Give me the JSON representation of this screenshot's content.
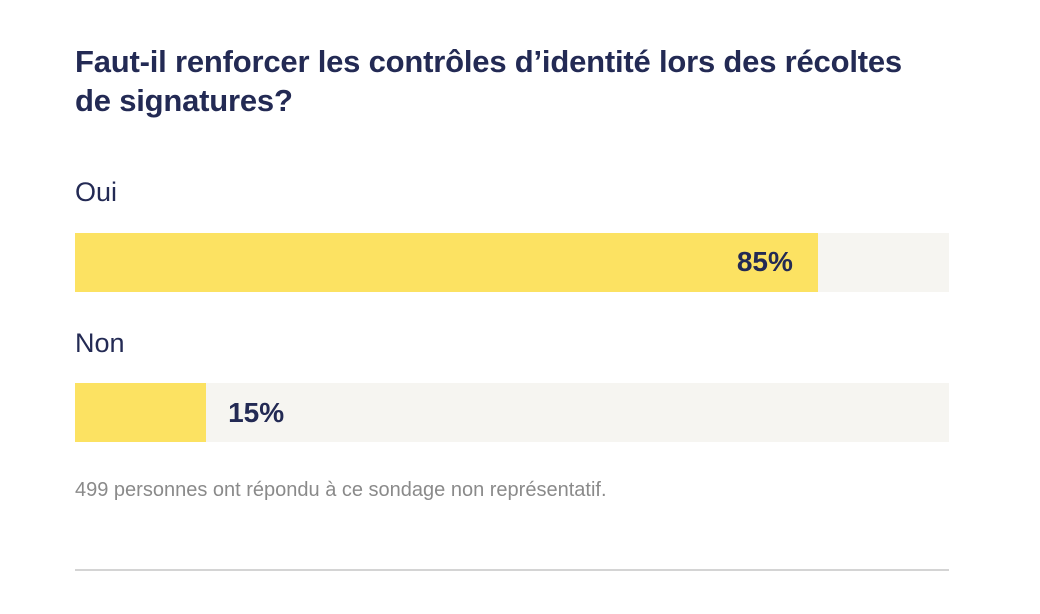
{
  "colors": {
    "accent": "#FCE262",
    "track": "#F6F5F1",
    "text": "#232A54",
    "muted": "#8A8A8A",
    "divider": "#D4D4D4"
  },
  "chart_data": {
    "type": "bar",
    "orientation": "horizontal",
    "title": "Faut-il renforcer les contrôles d’identité lors des récoltes de signatures?",
    "categories": [
      "Oui",
      "Non"
    ],
    "values": [
      85,
      15
    ],
    "value_labels": [
      "85%",
      "15%"
    ],
    "value_suffix": "%",
    "xlim": [
      0,
      100
    ],
    "grid": false,
    "legend": false,
    "note": "499 personnes ont répondu à ce sondage non représentatif."
  }
}
